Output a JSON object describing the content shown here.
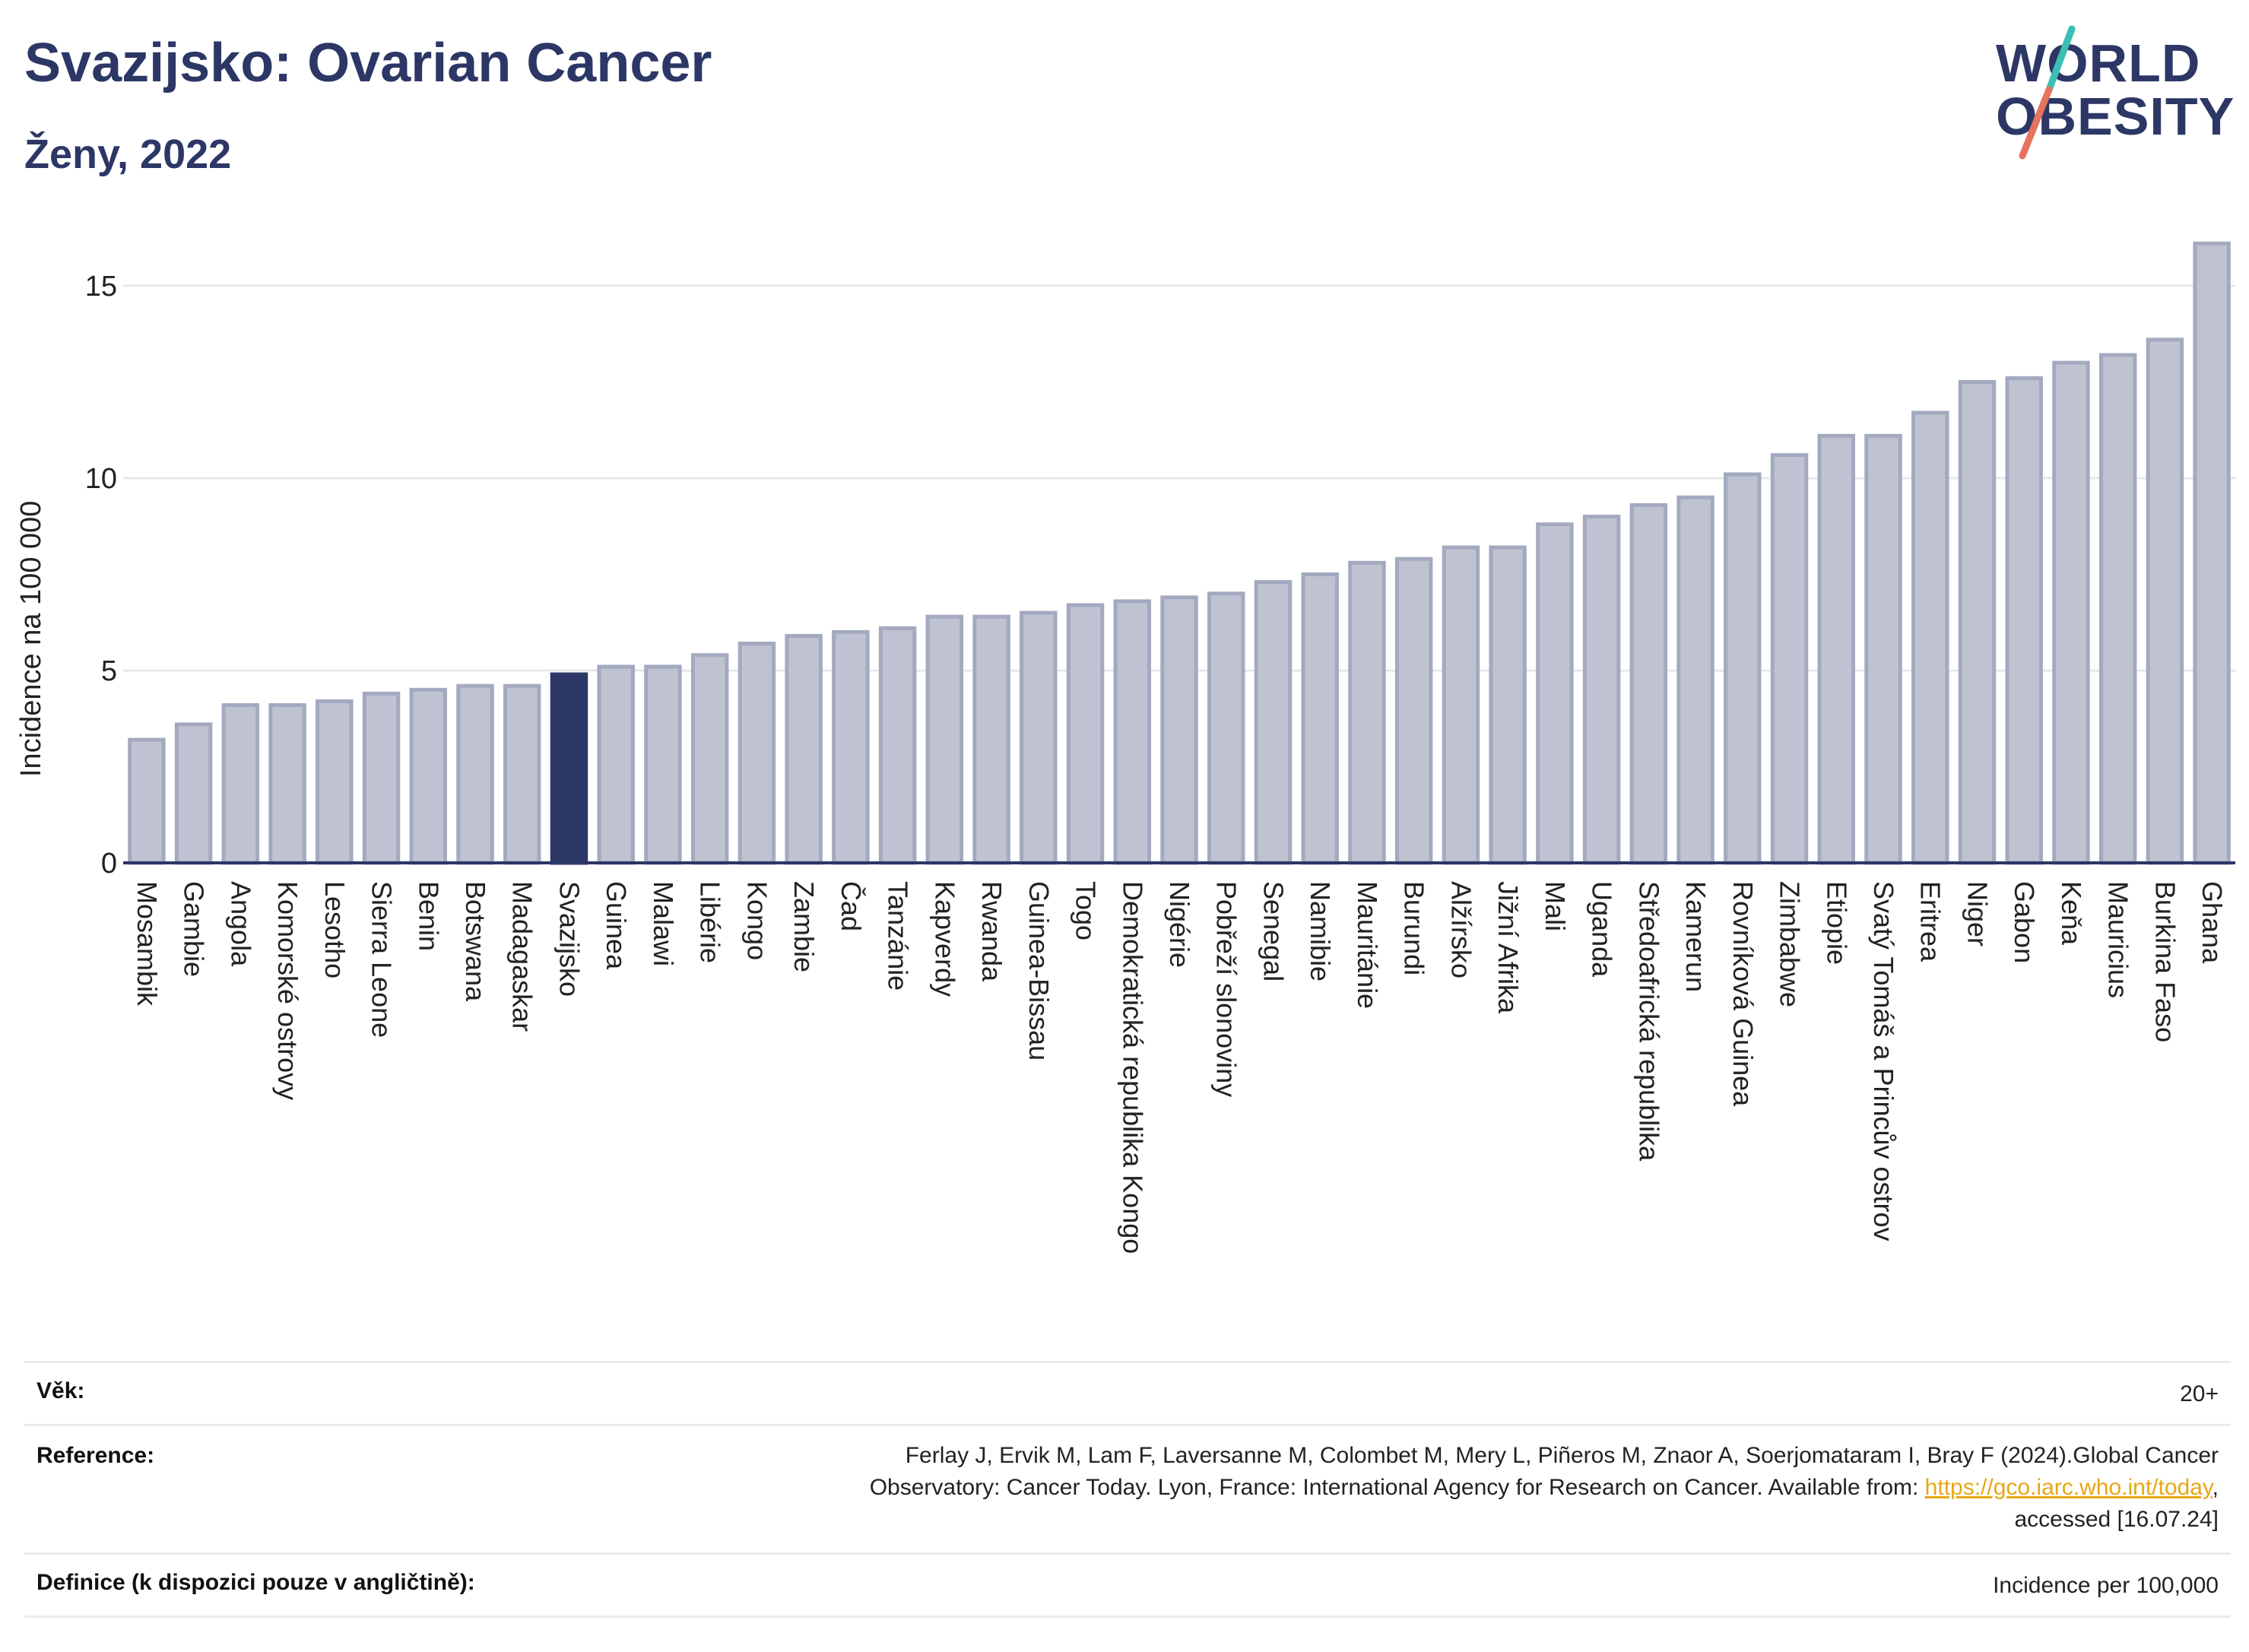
{
  "header": {
    "title": "Svazijsko: Ovarian Cancer",
    "subtitle": "Ženy, 2022",
    "logo_line1": "WORLD",
    "logo_line2": "OBESITY"
  },
  "colors": {
    "title": "#2c3766",
    "bar_default": "#bfc3d1",
    "bar_default_stroke": "#a3a9bf",
    "bar_highlight": "#2c3766",
    "grid": "#e6e8ec",
    "logo_slash_top": "#3bbfb5",
    "logo_slash_bottom": "#e5735f",
    "link": "#e6a817"
  },
  "chart_data": {
    "type": "bar",
    "title": "Svazijsko: Ovarian Cancer",
    "subtitle": "Ženy, 2022",
    "ylabel": "Incidence na 100 000",
    "xlabel": "",
    "ylim": [
      0,
      16.5
    ],
    "yticks": [
      0,
      5,
      10,
      15
    ],
    "grid": true,
    "highlight": "Svazijsko",
    "categories": [
      "Mosambik",
      "Gambie",
      "Angola",
      "Komorské ostrovy",
      "Lesotho",
      "Sierra Leone",
      "Benin",
      "Botswana",
      "Madagaskar",
      "Svazijsko",
      "Guinea",
      "Malawi",
      "Libérie",
      "Kongo",
      "Zambie",
      "Čad",
      "Tanzánie",
      "Kapverdy",
      "Rwanda",
      "Guinea-Bissau",
      "Togo",
      "Demokratická republika Kongo",
      "Nigérie",
      "Pobřeží slonoviny",
      "Senegal",
      "Namibie",
      "Mauritánie",
      "Burundi",
      "Alžírsko",
      "Jižní Afrika",
      "Mali",
      "Uganda",
      "Středoafrická republika",
      "Kamerun",
      "Rovníková Guinea",
      "Zimbabwe",
      "Etiopie",
      "Svatý Tomáš a Princův ostrov",
      "Eritrea",
      "Niger",
      "Gabon",
      "Keňa",
      "Mauricius",
      "Burkina Faso",
      "Ghana"
    ],
    "values": [
      3.2,
      3.6,
      4.1,
      4.1,
      4.2,
      4.4,
      4.5,
      4.6,
      4.6,
      4.9,
      5.1,
      5.1,
      5.4,
      5.7,
      5.9,
      6.0,
      6.1,
      6.4,
      6.4,
      6.5,
      6.7,
      6.8,
      6.9,
      7.0,
      7.3,
      7.5,
      7.8,
      7.9,
      8.2,
      8.2,
      8.8,
      9.0,
      9.3,
      9.5,
      10.1,
      10.6,
      11.1,
      11.1,
      11.7,
      12.5,
      12.6,
      13.0,
      13.2,
      13.6,
      16.1
    ]
  },
  "info": {
    "age_label": "Věk:",
    "age_value": "20+",
    "reference_label": "Reference:",
    "reference_line1": "Ferlay J, Ervik M, Lam F, Laversanne M, Colombet M, Mery L, Piñeros M, Znaor A, Soerjomataram I, Bray F (2024).Global Cancer",
    "reference_line2_pre": "Observatory: Cancer Today. Lyon, France: International Agency for Research on Cancer. Available from: ",
    "reference_link": "https://gco.iarc.who.int/today",
    "reference_line2_post": ",",
    "reference_line3": "accessed [16.07.24]",
    "definition_label": "Definice (k dispozici pouze v angličtině):",
    "definition_value": "Incidence per 100,000"
  }
}
